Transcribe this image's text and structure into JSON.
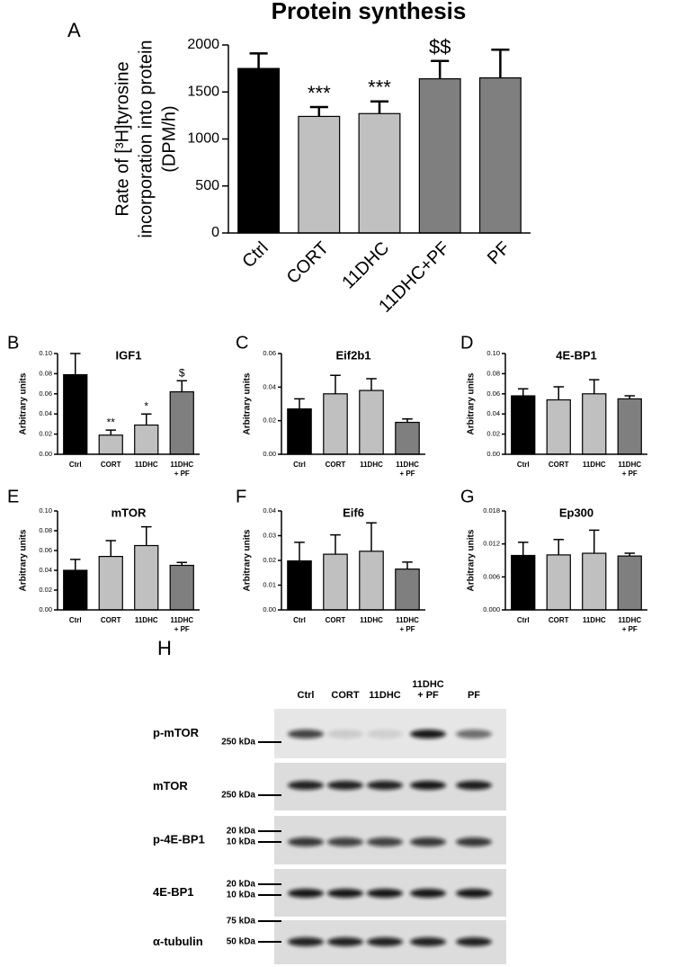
{
  "chart_data": [
    {
      "type": "bar",
      "panel": "A",
      "title": "Protein synthesis",
      "ylabel": [
        "Rate of [³H]tyrosine",
        "incorporation into protein",
        "(DPM/h)"
      ],
      "categories": [
        "Ctrl",
        "CORT",
        "11DHC",
        "11DHC+PF",
        "PF"
      ],
      "values": [
        1750,
        1240,
        1270,
        1640,
        1650
      ],
      "errors": [
        160,
        100,
        130,
        190,
        300
      ],
      "colors": [
        "#000000",
        "#c0c0c0",
        "#c0c0c0",
        "#7f7f7f",
        "#7f7f7f"
      ],
      "annotations": [
        null,
        "***",
        "***",
        "$$",
        null
      ],
      "ylim": [
        0,
        2000
      ],
      "yticks": [
        0,
        500,
        1000,
        1500,
        2000
      ]
    },
    {
      "type": "bar",
      "panel": "B",
      "title": "IGF1",
      "ylabel": "Arbitrary units",
      "categories": [
        "Ctrl",
        "CORT",
        "11DHC",
        [
          "11DHC",
          "+ PF"
        ]
      ],
      "values": [
        0.079,
        0.019,
        0.029,
        0.062
      ],
      "errors": [
        0.021,
        0.005,
        0.011,
        0.011
      ],
      "colors": [
        "#000000",
        "#c0c0c0",
        "#c0c0c0",
        "#7f7f7f"
      ],
      "annotations": [
        null,
        "**",
        "*",
        "$"
      ],
      "ylim": [
        0,
        0.1
      ],
      "yticks": [
        {
          "value": 0,
          "label": "0.00"
        },
        0.02,
        0.04,
        0.06,
        0.08,
        {
          "value": 0.1,
          "label": "0.10"
        }
      ]
    },
    {
      "type": "bar",
      "panel": "C",
      "title": "Eif2b1",
      "ylabel": "Arbitrary units",
      "categories": [
        "Ctrl",
        "CORT",
        "11DHC",
        [
          "11DHC",
          "+ PF"
        ]
      ],
      "values": [
        0.027,
        0.036,
        0.038,
        0.019
      ],
      "errors": [
        0.006,
        0.011,
        0.007,
        0.002
      ],
      "colors": [
        "#000000",
        "#c0c0c0",
        "#c0c0c0",
        "#7f7f7f"
      ],
      "ylim": [
        0,
        0.06
      ],
      "yticks": [
        {
          "value": 0,
          "label": "0.00"
        },
        0.02,
        0.04,
        0.06
      ]
    },
    {
      "type": "bar",
      "panel": "D",
      "title": "4E-BP1",
      "ylabel": "Arbitrary units",
      "categories": [
        "Ctrl",
        "CORT",
        "11DHC",
        [
          "11DHC",
          "+ PF"
        ]
      ],
      "values": [
        0.058,
        0.054,
        0.06,
        0.055
      ],
      "errors": [
        0.007,
        0.013,
        0.014,
        0.003
      ],
      "colors": [
        "#000000",
        "#c0c0c0",
        "#c0c0c0",
        "#7f7f7f"
      ],
      "ylim": [
        0,
        0.1
      ],
      "yticks": [
        {
          "value": 0,
          "label": "0.00"
        },
        0.02,
        0.04,
        0.06,
        0.08,
        {
          "value": 0.1,
          "label": "0.10"
        }
      ]
    },
    {
      "type": "bar",
      "panel": "E",
      "title": "mTOR",
      "ylabel": "Arbitrary units",
      "categories": [
        "Ctrl",
        "CORT",
        "11DHC",
        [
          "11DHC",
          "+ PF"
        ]
      ],
      "values": [
        0.04,
        0.054,
        0.065,
        0.045
      ],
      "errors": [
        0.011,
        0.016,
        0.019,
        0.003
      ],
      "colors": [
        "#000000",
        "#c0c0c0",
        "#c0c0c0",
        "#7f7f7f"
      ],
      "ylim": [
        0,
        0.1
      ],
      "yticks": [
        {
          "value": 0,
          "label": "0.00"
        },
        0.02,
        0.04,
        0.06,
        0.08,
        {
          "value": 0.1,
          "label": "0.10"
        }
      ]
    },
    {
      "type": "bar",
      "panel": "F",
      "title": "Eif6",
      "ylabel": "Arbitrary units",
      "categories": [
        "Ctrl",
        "CORT",
        "11DHC",
        [
          "11DHC",
          "+ PF"
        ]
      ],
      "values": [
        0.0198,
        0.0225,
        0.0237,
        0.0165
      ],
      "errors": [
        0.0075,
        0.0078,
        0.0115,
        0.0028
      ],
      "colors": [
        "#000000",
        "#c0c0c0",
        "#c0c0c0",
        "#7f7f7f"
      ],
      "ylim": [
        0,
        0.04
      ],
      "yticks": [
        {
          "value": 0,
          "label": "0.00"
        },
        0.01,
        0.02,
        0.03,
        0.04
      ]
    },
    {
      "type": "bar",
      "panel": "G",
      "title": "Ep300",
      "ylabel": "Arbitrary units",
      "categories": [
        "Ctrl",
        "CORT",
        "11DHC",
        [
          "11DHC",
          "+ PF"
        ]
      ],
      "values": [
        0.0099,
        0.01,
        0.0103,
        0.0098
      ],
      "errors": [
        0.0024,
        0.0028,
        0.0042,
        0.0005
      ],
      "colors": [
        "#000000",
        "#c0c0c0",
        "#c0c0c0",
        "#7f7f7f"
      ],
      "ylim": [
        0,
        0.018
      ],
      "yticks": [
        {
          "value": 0,
          "label": "0.000"
        },
        0.006,
        0.012,
        0.018
      ]
    }
  ],
  "blot": {
    "panel": "H",
    "lanes": [
      "Ctrl",
      "CORT",
      "11DHC",
      [
        "11DHC",
        "+ PF"
      ],
      "PF"
    ],
    "rows": [
      {
        "name": "p-mTOR",
        "markers": [
          "250 kDa"
        ]
      },
      {
        "name": "mTOR",
        "markers": [
          "250 kDa"
        ]
      },
      {
        "name": "p-4E-BP1",
        "markers": [
          "20 kDa",
          "10 kDa"
        ]
      },
      {
        "name": "4E-BP1",
        "markers": [
          "20 kDa",
          "10 kDa"
        ]
      },
      {
        "name": "α-tubulin",
        "markers": [
          "75 kDa",
          "50 kDa"
        ]
      }
    ]
  }
}
